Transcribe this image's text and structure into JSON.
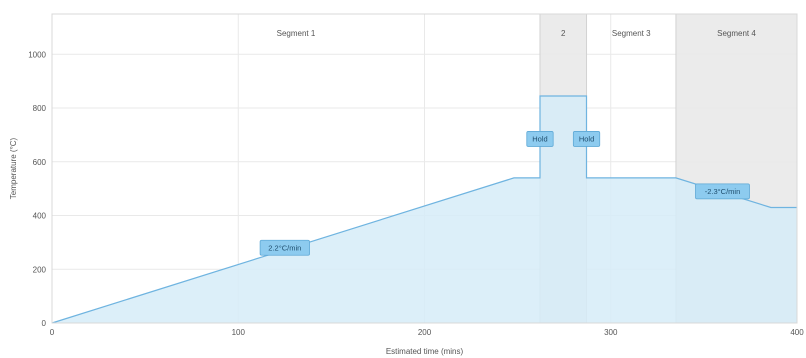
{
  "chart_data": {
    "type": "area",
    "title": "",
    "xlabel": "Estimated time (mins)",
    "ylabel": "Temperature (°C)",
    "xlim": [
      0,
      400
    ],
    "ylim": [
      0,
      1150
    ],
    "x_ticks": [
      0,
      100,
      200,
      300,
      400
    ],
    "y_ticks": [
      0,
      200,
      400,
      600,
      800,
      1000
    ],
    "grid": true,
    "series": [
      {
        "x": [
          0,
          248,
          262,
          262,
          287,
          287,
          335,
          386,
          400
        ],
        "y": [
          0,
          540,
          540,
          845,
          845,
          540,
          540,
          430,
          430
        ]
      }
    ],
    "segments": [
      {
        "label": "Segment 1",
        "x_start": 0,
        "x_end": 262,
        "shaded": false
      },
      {
        "label": "2",
        "x_start": 262,
        "x_end": 287,
        "shaded": true
      },
      {
        "label": "Segment 3",
        "x_start": 287,
        "x_end": 335,
        "shaded": false
      },
      {
        "label": "Segment 4",
        "x_start": 335,
        "x_end": 400,
        "shaded": true
      }
    ],
    "annotations": [
      {
        "text": "2.2°C/min",
        "x": 125,
        "y": 280
      },
      {
        "text": "Hold",
        "x": 262,
        "y": 685
      },
      {
        "text": "Hold",
        "x": 287,
        "y": 685
      },
      {
        "text": "-2.3°C/min",
        "x": 360,
        "y": 490
      }
    ],
    "colors": {
      "fill": "#d6ecf8",
      "line": "#6fb4e0",
      "shade": "#ebebeb",
      "label_bg": "#8dcbef",
      "grid": "#e9e9e9",
      "axis": "#bdbdbd"
    }
  }
}
